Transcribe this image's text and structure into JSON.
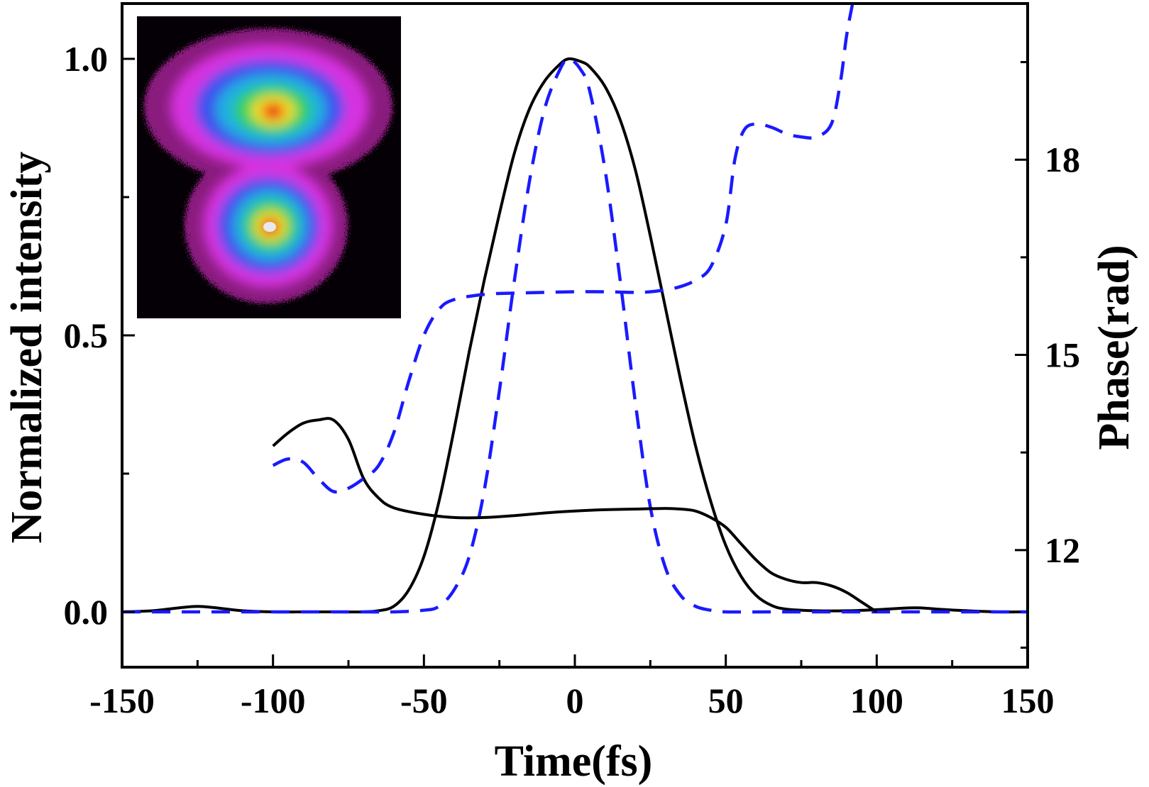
{
  "chart_data": {
    "type": "line",
    "title": "",
    "xlabel": "Time(fs)",
    "ylabel": "Normalized intensity",
    "y2label": "Phase(rad)",
    "xlim": [
      -150,
      150
    ],
    "ylim": [
      -0.1,
      1.1
    ],
    "y2lim": [
      10.2,
      20.4
    ],
    "xticks": [
      -150,
      -100,
      -50,
      0,
      50,
      100,
      150
    ],
    "xtick_labels": [
      "-150",
      "-100",
      "-50",
      "0",
      "50",
      "100",
      "150"
    ],
    "yticks": [
      0.0,
      0.5,
      1.0
    ],
    "ytick_labels": [
      "0.0",
      "0.5",
      "1.0"
    ],
    "y2ticks": [
      12,
      15,
      18
    ],
    "y2tick_labels": [
      "12",
      "15",
      "18"
    ],
    "legend": "none",
    "grid": false,
    "inset": {
      "description": "beam profile image with two intensity lobes",
      "colormap": "rainbow on black"
    },
    "colors": {
      "solid": "#000000",
      "dashed": "#1a1aff",
      "axes": "#000000"
    },
    "series": [
      {
        "name": "intensity-solid",
        "axis": "left",
        "style": "solid",
        "points": [
          [
            -150,
            0.0
          ],
          [
            -140,
            0.002
          ],
          [
            -130,
            0.008
          ],
          [
            -125,
            0.01
          ],
          [
            -120,
            0.008
          ],
          [
            -110,
            0.002
          ],
          [
            -100,
            0.0
          ],
          [
            -90,
            0.0
          ],
          [
            -80,
            0.0
          ],
          [
            -70,
            0.0
          ],
          [
            -65,
            0.002
          ],
          [
            -60,
            0.01
          ],
          [
            -55,
            0.04
          ],
          [
            -50,
            0.1
          ],
          [
            -45,
            0.2
          ],
          [
            -40,
            0.33
          ],
          [
            -35,
            0.47
          ],
          [
            -30,
            0.6
          ],
          [
            -25,
            0.72
          ],
          [
            -20,
            0.83
          ],
          [
            -15,
            0.91
          ],
          [
            -10,
            0.96
          ],
          [
            -5,
            0.99
          ],
          [
            -2,
            1.0
          ],
          [
            2,
            0.995
          ],
          [
            5,
            0.985
          ],
          [
            10,
            0.95
          ],
          [
            15,
            0.89
          ],
          [
            20,
            0.8
          ],
          [
            25,
            0.68
          ],
          [
            30,
            0.55
          ],
          [
            35,
            0.42
          ],
          [
            40,
            0.3
          ],
          [
            45,
            0.2
          ],
          [
            50,
            0.12
          ],
          [
            55,
            0.065
          ],
          [
            60,
            0.03
          ],
          [
            65,
            0.012
          ],
          [
            70,
            0.005
          ],
          [
            80,
            0.002
          ],
          [
            90,
            0.002
          ],
          [
            100,
            0.004
          ],
          [
            110,
            0.007
          ],
          [
            115,
            0.007
          ],
          [
            120,
            0.005
          ],
          [
            130,
            0.002
          ],
          [
            140,
            0.0
          ],
          [
            150,
            0.0
          ]
        ]
      },
      {
        "name": "intensity-dashed",
        "axis": "left",
        "style": "dashed",
        "points": [
          [
            -150,
            0.0
          ],
          [
            -130,
            0.0
          ],
          [
            -110,
            0.0
          ],
          [
            -90,
            0.0
          ],
          [
            -70,
            0.0
          ],
          [
            -60,
            0.0
          ],
          [
            -50,
            0.003
          ],
          [
            -45,
            0.01
          ],
          [
            -40,
            0.04
          ],
          [
            -35,
            0.1
          ],
          [
            -30,
            0.22
          ],
          [
            -25,
            0.4
          ],
          [
            -20,
            0.6
          ],
          [
            -15,
            0.78
          ],
          [
            -10,
            0.91
          ],
          [
            -5,
            0.98
          ],
          [
            -2,
            1.0
          ],
          [
            2,
            0.98
          ],
          [
            5,
            0.94
          ],
          [
            10,
            0.8
          ],
          [
            15,
            0.6
          ],
          [
            20,
            0.38
          ],
          [
            25,
            0.19
          ],
          [
            30,
            0.08
          ],
          [
            35,
            0.03
          ],
          [
            40,
            0.01
          ],
          [
            45,
            0.003
          ],
          [
            50,
            0.0
          ],
          [
            70,
            0.0
          ],
          [
            100,
            0.0
          ],
          [
            130,
            0.0
          ],
          [
            150,
            0.0
          ]
        ]
      },
      {
        "name": "phase-solid",
        "axis": "right",
        "style": "solid",
        "points": [
          [
            -100,
            13.6
          ],
          [
            -95,
            13.8
          ],
          [
            -90,
            13.95
          ],
          [
            -85,
            14.0
          ],
          [
            -80,
            14.0
          ],
          [
            -75,
            13.7
          ],
          [
            -70,
            13.1
          ],
          [
            -65,
            12.8
          ],
          [
            -60,
            12.65
          ],
          [
            -50,
            12.55
          ],
          [
            -40,
            12.5
          ],
          [
            -30,
            12.5
          ],
          [
            -20,
            12.53
          ],
          [
            -10,
            12.57
          ],
          [
            0,
            12.6
          ],
          [
            10,
            12.62
          ],
          [
            20,
            12.63
          ],
          [
            30,
            12.64
          ],
          [
            35,
            12.63
          ],
          [
            40,
            12.6
          ],
          [
            45,
            12.5
          ],
          [
            50,
            12.35
          ],
          [
            55,
            12.1
          ],
          [
            60,
            11.85
          ],
          [
            65,
            11.65
          ],
          [
            70,
            11.55
          ],
          [
            75,
            11.5
          ],
          [
            80,
            11.5
          ],
          [
            85,
            11.45
          ],
          [
            90,
            11.35
          ],
          [
            95,
            11.2
          ],
          [
            100,
            11.05
          ]
        ]
      },
      {
        "name": "phase-dashed",
        "axis": "right",
        "style": "dashed",
        "points": [
          [
            -100,
            13.3
          ],
          [
            -95,
            13.4
          ],
          [
            -90,
            13.35
          ],
          [
            -85,
            13.1
          ],
          [
            -80,
            12.9
          ],
          [
            -75,
            12.95
          ],
          [
            -70,
            13.1
          ],
          [
            -65,
            13.3
          ],
          [
            -60,
            13.8
          ],
          [
            -55,
            14.6
          ],
          [
            -50,
            15.3
          ],
          [
            -45,
            15.7
          ],
          [
            -40,
            15.85
          ],
          [
            -30,
            15.93
          ],
          [
            -20,
            15.95
          ],
          [
            -10,
            15.96
          ],
          [
            0,
            15.97
          ],
          [
            10,
            15.97
          ],
          [
            20,
            15.96
          ],
          [
            25,
            15.97
          ],
          [
            30,
            16.0
          ],
          [
            35,
            16.05
          ],
          [
            40,
            16.15
          ],
          [
            45,
            16.35
          ],
          [
            50,
            17.0
          ],
          [
            53,
            18.0
          ],
          [
            56,
            18.45
          ],
          [
            60,
            18.55
          ],
          [
            65,
            18.5
          ],
          [
            70,
            18.4
          ],
          [
            75,
            18.35
          ],
          [
            80,
            18.35
          ],
          [
            85,
            18.55
          ],
          [
            88,
            19.2
          ],
          [
            90,
            19.9
          ],
          [
            92,
            20.4
          ]
        ]
      }
    ]
  }
}
